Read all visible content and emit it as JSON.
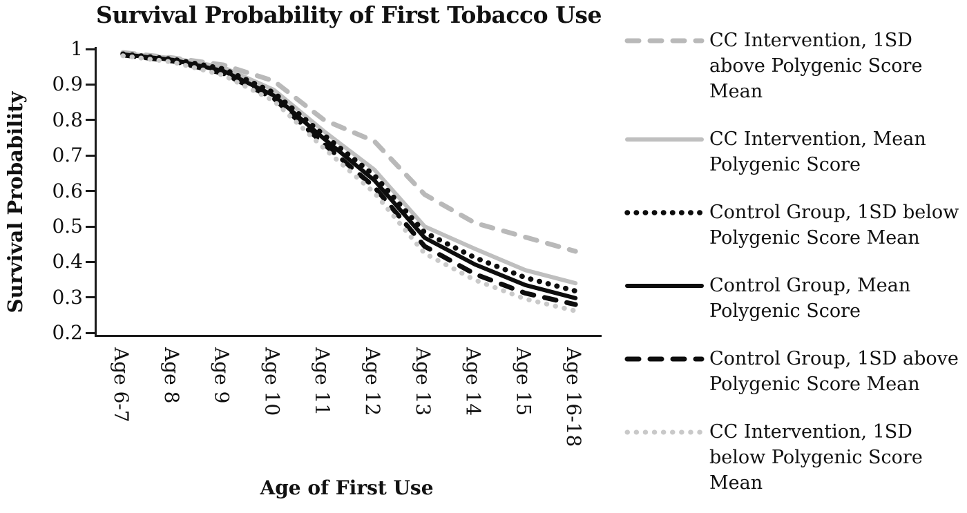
{
  "chart_data": {
    "type": "line",
    "title": "Survival Probability of First Tobacco Use",
    "xlabel": "Age of First Use",
    "ylabel": "Survival Probability",
    "categories": [
      "Age 6-7",
      "Age 8",
      "Age 9",
      "Age 10",
      "Age 11",
      "Age 12",
      "Age 13",
      "Age 14",
      "Age 15",
      "Age 16-18"
    ],
    "ytick_labels": [
      "1",
      "0.9",
      "0.8",
      "0.7",
      "0.6",
      "0.5",
      "0.4",
      "0.3",
      "0.2"
    ],
    "ylim": [
      0.2,
      1.0
    ],
    "grid": false,
    "legend_position": "right",
    "background": "#ffffff",
    "axis_color": "#1a1a1a",
    "text_color": "#111111",
    "series": [
      {
        "name": "CC Intervention, 1SD above Polygenic Score Mean",
        "legend_lines": [
          "CC Intervention, 1SD",
          "above Polygenic Score",
          "Mean"
        ],
        "style": "dash",
        "color": "#b9b9b9",
        "width": 7,
        "values": [
          0.99,
          0.975,
          0.955,
          0.91,
          0.8,
          0.74,
          0.59,
          0.51,
          0.47,
          0.43
        ]
      },
      {
        "name": "CC Intervention, Mean Polygenic Score",
        "legend_lines": [
          "CC Intervention, Mean",
          "Polygenic Score"
        ],
        "style": "solid",
        "color": "#bfbfbf",
        "width": 6,
        "values": [
          0.988,
          0.974,
          0.948,
          0.885,
          0.768,
          0.66,
          0.5,
          0.437,
          0.377,
          0.34
        ]
      },
      {
        "name": "Control Group, 1SD below Polygenic Score Mean",
        "legend_lines": [
          "Control Group, 1SD below",
          "Polygenic Score Mean"
        ],
        "style": "dot",
        "color": "#0d0d0d",
        "width": 7.5,
        "values": [
          0.986,
          0.971,
          0.944,
          0.877,
          0.757,
          0.644,
          0.483,
          0.412,
          0.356,
          0.318
        ]
      },
      {
        "name": "Control Group, Mean Polygenic Score",
        "legend_lines": [
          "Control Group, Mean",
          "Polygenic Score"
        ],
        "style": "solid",
        "color": "#0d0d0d",
        "width": 6,
        "values": [
          0.985,
          0.969,
          0.938,
          0.869,
          0.747,
          0.63,
          0.468,
          0.393,
          0.335,
          0.298
        ]
      },
      {
        "name": "Control Group, 1SD above Polygenic Score Mean",
        "legend_lines": [
          "Control Group, 1SD above",
          "Polygenic Score Mean"
        ],
        "style": "dash",
        "color": "#0d0d0d",
        "width": 7,
        "values": [
          0.983,
          0.966,
          0.931,
          0.861,
          0.732,
          0.611,
          0.444,
          0.366,
          0.312,
          0.28
        ]
      },
      {
        "name": "CC Intervention, 1SD below Polygenic Score Mean",
        "legend_lines": [
          "CC Intervention, 1SD",
          "below Polygenic Score",
          "Mean"
        ],
        "style": "dot",
        "color": "#c9c9c9",
        "width": 7,
        "values": [
          0.981,
          0.963,
          0.926,
          0.854,
          0.72,
          0.595,
          0.424,
          0.349,
          0.296,
          0.262
        ]
      }
    ]
  }
}
